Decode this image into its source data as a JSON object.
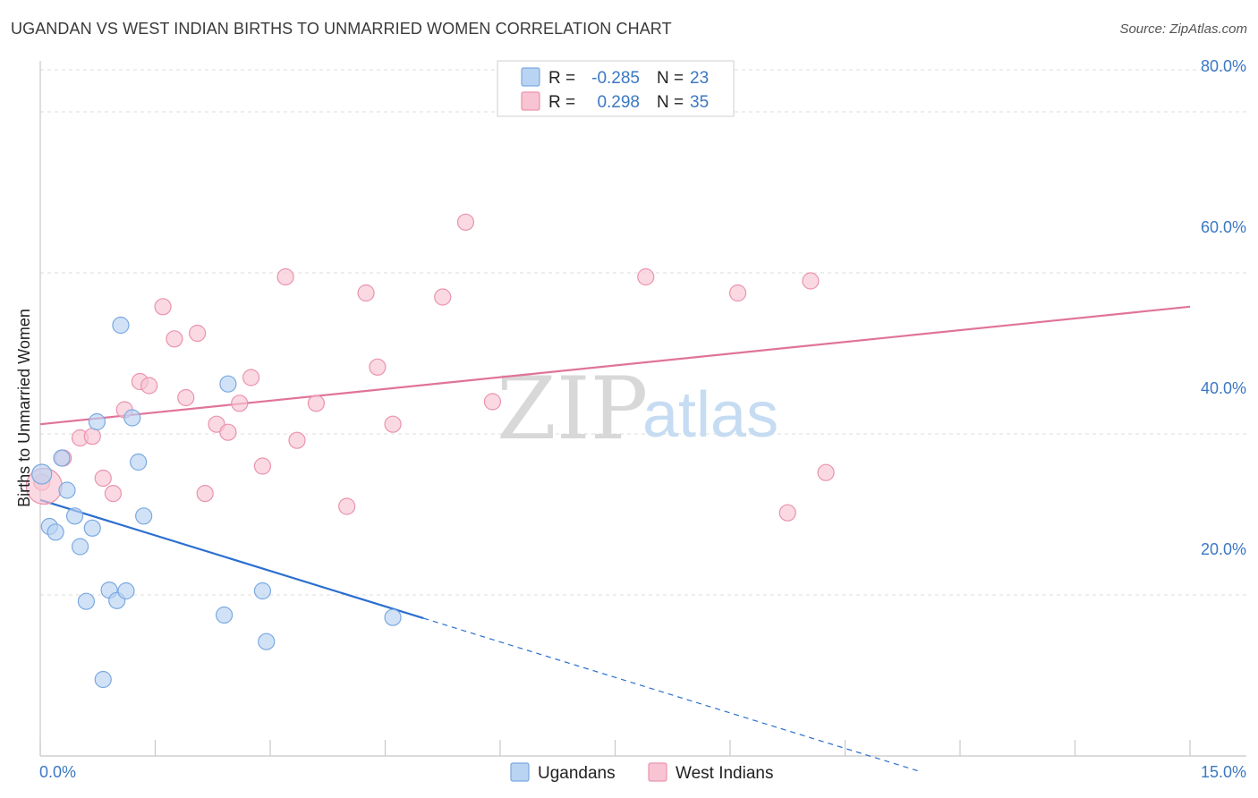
{
  "title": "UGANDAN VS WEST INDIAN BIRTHS TO UNMARRIED WOMEN CORRELATION CHART",
  "source": "Source: ZipAtlas.com",
  "watermark": {
    "zip": "ZIP",
    "atlas": "atlas"
  },
  "colors": {
    "blue_fill": "#b9d3f2",
    "blue_stroke": "#7aa9e0",
    "blue_line": "#2b6fcf",
    "pink_fill": "#f8c4d3",
    "pink_stroke": "#ea93ad",
    "pink_line": "#e0739a",
    "grid": "#dddddd",
    "axis_label": "#3b78c4",
    "value_blue": "#3b78c4"
  },
  "legend": {
    "rows": [
      {
        "r_label": "R =",
        "r_value": "-0.285",
        "n_label": "N =",
        "n_value": "23"
      },
      {
        "r_label": "R =",
        "r_value": "0.298",
        "n_label": "N =",
        "n_value": "35"
      }
    ]
  },
  "chart_data": {
    "type": "scatter",
    "xlabel": "",
    "ylabel": "Births to Unmarried Women",
    "xlim": [
      0,
      15
    ],
    "ylim": [
      0,
      85
    ],
    "x_tick_labels": [
      "0.0%",
      "15.0%"
    ],
    "y_ticks": [
      20,
      40,
      60,
      80
    ],
    "y_tick_labels": [
      "20.0%",
      "40.0%",
      "60.0%",
      "80.0%"
    ],
    "grid": true,
    "series": [
      {
        "name": "Ugandans",
        "points": [
          [
            0.02,
            35.0
          ],
          [
            0.12,
            28.5
          ],
          [
            0.2,
            27.8
          ],
          [
            0.28,
            37.0
          ],
          [
            0.35,
            33.0
          ],
          [
            0.45,
            29.8
          ],
          [
            0.52,
            26.0
          ],
          [
            0.6,
            19.2
          ],
          [
            0.68,
            28.3
          ],
          [
            0.74,
            41.5
          ],
          [
            0.82,
            9.5
          ],
          [
            0.9,
            20.6
          ],
          [
            1.0,
            19.3
          ],
          [
            1.05,
            53.5
          ],
          [
            1.12,
            20.5
          ],
          [
            1.2,
            42.0
          ],
          [
            1.28,
            36.5
          ],
          [
            1.35,
            29.8
          ],
          [
            2.4,
            17.5
          ],
          [
            2.45,
            46.2
          ],
          [
            2.9,
            20.5
          ],
          [
            2.95,
            14.2
          ],
          [
            4.6,
            17.2
          ]
        ],
        "sizes": [
          11,
          9,
          9,
          9,
          9,
          9,
          9,
          9,
          9,
          9,
          9,
          9,
          9,
          9,
          9,
          9,
          9,
          9,
          9,
          9,
          9,
          9,
          9
        ],
        "trend": {
          "x0": 0.0,
          "y0": 31.8,
          "x_solid_end": 5.0,
          "x1": 11.5,
          "y1": -2.0
        }
      },
      {
        "name": "West Indians",
        "points": [
          [
            0.02,
            34.0
          ],
          [
            0.3,
            37.0
          ],
          [
            0.52,
            39.5
          ],
          [
            0.68,
            39.7
          ],
          [
            0.82,
            34.5
          ],
          [
            0.95,
            32.6
          ],
          [
            1.1,
            43.0
          ],
          [
            1.3,
            46.5
          ],
          [
            1.42,
            46.0
          ],
          [
            1.6,
            55.8
          ],
          [
            1.75,
            51.8
          ],
          [
            1.9,
            44.5
          ],
          [
            2.05,
            52.5
          ],
          [
            2.15,
            32.6
          ],
          [
            2.3,
            41.2
          ],
          [
            2.45,
            40.2
          ],
          [
            2.6,
            43.8
          ],
          [
            2.75,
            47.0
          ],
          [
            2.9,
            36.0
          ],
          [
            3.2,
            59.5
          ],
          [
            3.35,
            39.2
          ],
          [
            3.6,
            43.8
          ],
          [
            4.0,
            31.0
          ],
          [
            4.25,
            57.5
          ],
          [
            4.4,
            48.3
          ],
          [
            4.6,
            41.2
          ],
          [
            5.25,
            57.0
          ],
          [
            5.55,
            66.3
          ],
          [
            5.9,
            44.0
          ],
          [
            7.9,
            59.5
          ],
          [
            9.1,
            57.5
          ],
          [
            9.75,
            30.2
          ],
          [
            10.05,
            59.0
          ],
          [
            10.25,
            35.2
          ],
          [
            0.05,
            33.5
          ]
        ],
        "sizes": [
          9,
          9,
          9,
          9,
          9,
          9,
          9,
          9,
          9,
          9,
          9,
          9,
          9,
          9,
          9,
          9,
          9,
          9,
          9,
          9,
          9,
          9,
          9,
          9,
          9,
          9,
          9,
          9,
          9,
          9,
          9,
          9,
          9,
          9,
          20
        ],
        "trend": {
          "x0": 0.0,
          "y0": 41.2,
          "x1": 15.0,
          "y1": 55.8
        }
      }
    ]
  }
}
